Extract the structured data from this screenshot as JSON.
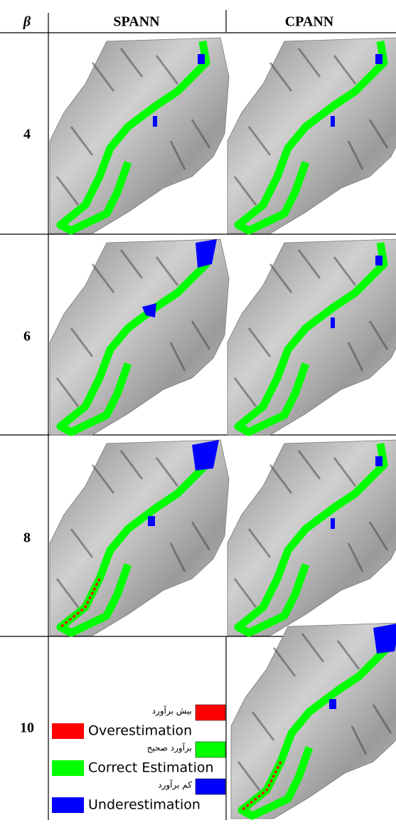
{
  "table": {
    "header": [
      "β",
      "SPANN",
      "CPANN"
    ],
    "rows": [
      "4",
      "6",
      "8",
      "10"
    ]
  },
  "legend": [
    {
      "fa": "بیش برآورد",
      "en": "Overestimation"
    },
    {
      "fa": "برآورد صحیح",
      "en": "Correct Estimation"
    },
    {
      "fa": "کم برآورد",
      "en": "Underestimation"
    }
  ]
}
